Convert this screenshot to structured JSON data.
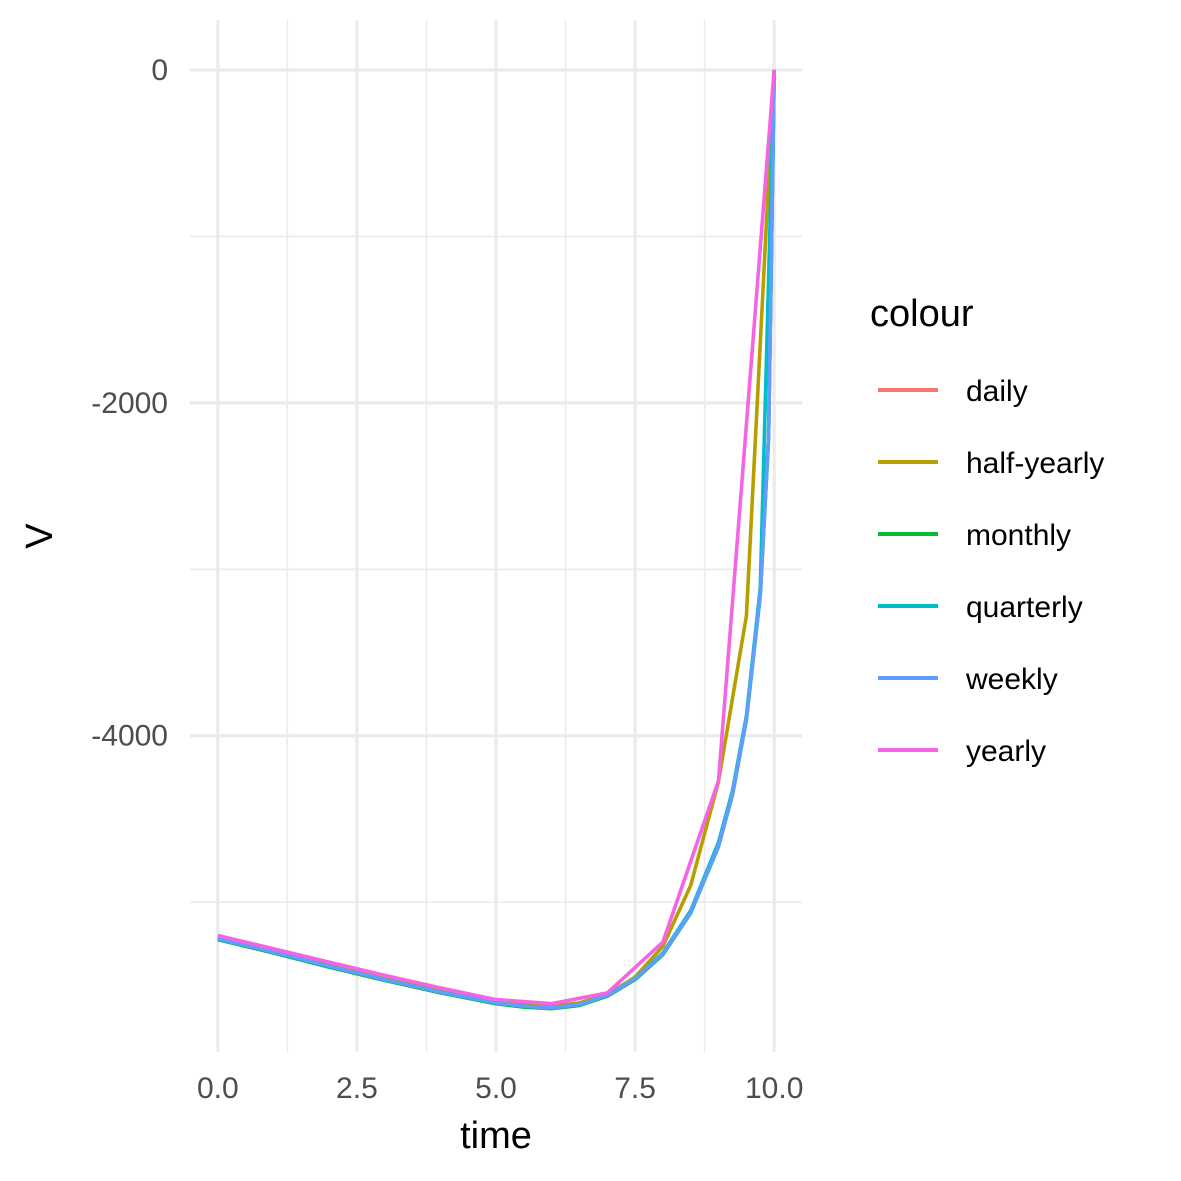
{
  "chart_data": {
    "type": "line",
    "xlabel": "time",
    "ylabel": "V",
    "xlim": [
      -0.5,
      10.5
    ],
    "ylim": [
      -5900,
      300
    ],
    "x_ticks": [
      0,
      2.5,
      5,
      7.5,
      10
    ],
    "x_tick_labels": [
      "0.0",
      "2.5",
      "5.0",
      "7.5",
      "10.0"
    ],
    "y_ticks": [
      0,
      -2000,
      -4000
    ],
    "y_tick_labels": [
      "0",
      "-2000",
      "-4000"
    ],
    "grid": true,
    "legend": {
      "title": "colour",
      "position": "right"
    },
    "series": [
      {
        "name": "daily",
        "color": "#F8766D",
        "points": [
          [
            0,
            -5220
          ],
          [
            1,
            -5300
          ],
          [
            2,
            -5385
          ],
          [
            3,
            -5465
          ],
          [
            4,
            -5540
          ],
          [
            5,
            -5605
          ],
          [
            5.5,
            -5625
          ],
          [
            6,
            -5635
          ],
          [
            6.5,
            -5615
          ],
          [
            7,
            -5560
          ],
          [
            7.5,
            -5460
          ],
          [
            8,
            -5310
          ],
          [
            8.5,
            -5060
          ],
          [
            9,
            -4660
          ],
          [
            9.25,
            -4350
          ],
          [
            9.5,
            -3900
          ],
          [
            9.75,
            -3150
          ],
          [
            9.9,
            -2200
          ],
          [
            10,
            0
          ]
        ]
      },
      {
        "name": "half-yearly",
        "color": "#B79F00",
        "points": [
          [
            0,
            -5210
          ],
          [
            0.5,
            -5250
          ],
          [
            1,
            -5290
          ],
          [
            1.5,
            -5330
          ],
          [
            2,
            -5370
          ],
          [
            2.5,
            -5410
          ],
          [
            3,
            -5450
          ],
          [
            3.5,
            -5490
          ],
          [
            4,
            -5525
          ],
          [
            4.5,
            -5560
          ],
          [
            5,
            -5595
          ],
          [
            5.5,
            -5615
          ],
          [
            6,
            -5625
          ],
          [
            6.5,
            -5605
          ],
          [
            7,
            -5555
          ],
          [
            7.5,
            -5450
          ],
          [
            8,
            -5265
          ],
          [
            8.5,
            -4900
          ],
          [
            9,
            -4275
          ],
          [
            9.5,
            -3280
          ],
          [
            10,
            0
          ]
        ]
      },
      {
        "name": "monthly",
        "color": "#00BA38",
        "points": [
          [
            0,
            -5225
          ],
          [
            1,
            -5305
          ],
          [
            2,
            -5390
          ],
          [
            3,
            -5470
          ],
          [
            4,
            -5545
          ],
          [
            5,
            -5610
          ],
          [
            5.5,
            -5630
          ],
          [
            6,
            -5640
          ],
          [
            6.5,
            -5620
          ],
          [
            7,
            -5565
          ],
          [
            7.5,
            -5465
          ],
          [
            8,
            -5315
          ],
          [
            8.5,
            -5065
          ],
          [
            9,
            -4665
          ],
          [
            9.25,
            -4355
          ],
          [
            9.5,
            -3905
          ],
          [
            9.75,
            -3155
          ],
          [
            9.9,
            -2210
          ],
          [
            10,
            0
          ]
        ]
      },
      {
        "name": "quarterly",
        "color": "#00BFC4",
        "points": [
          [
            0,
            -5220
          ],
          [
            1,
            -5300
          ],
          [
            2,
            -5385
          ],
          [
            3,
            -5465
          ],
          [
            4,
            -5540
          ],
          [
            5,
            -5605
          ],
          [
            5.5,
            -5625
          ],
          [
            6,
            -5635
          ],
          [
            6.5,
            -5615
          ],
          [
            7,
            -5560
          ],
          [
            7.5,
            -5460
          ],
          [
            8,
            -5305
          ],
          [
            8.5,
            -5050
          ],
          [
            9,
            -4640
          ],
          [
            9.25,
            -4330
          ],
          [
            9.5,
            -3880
          ],
          [
            9.75,
            -3110
          ],
          [
            10,
            0
          ]
        ]
      },
      {
        "name": "weekly",
        "color": "#619CFF",
        "points": [
          [
            0,
            -5220
          ],
          [
            1,
            -5300
          ],
          [
            2,
            -5385
          ],
          [
            3,
            -5465
          ],
          [
            4,
            -5540
          ],
          [
            5,
            -5605
          ],
          [
            5.5,
            -5625
          ],
          [
            6,
            -5635
          ],
          [
            6.5,
            -5615
          ],
          [
            7,
            -5560
          ],
          [
            7.5,
            -5460
          ],
          [
            8,
            -5310
          ],
          [
            8.5,
            -5060
          ],
          [
            9,
            -4660
          ],
          [
            9.25,
            -4350
          ],
          [
            9.5,
            -3900
          ],
          [
            9.75,
            -3150
          ],
          [
            9.9,
            -2200
          ],
          [
            10,
            0
          ]
        ]
      },
      {
        "name": "yearly",
        "color": "#F564E3",
        "points": [
          [
            0,
            -5200
          ],
          [
            1,
            -5280
          ],
          [
            2,
            -5360
          ],
          [
            3,
            -5440
          ],
          [
            4,
            -5515
          ],
          [
            5,
            -5585
          ],
          [
            6,
            -5610
          ],
          [
            7,
            -5545
          ],
          [
            8,
            -5240
          ],
          [
            9,
            -4270
          ],
          [
            10,
            0
          ]
        ]
      }
    ]
  }
}
